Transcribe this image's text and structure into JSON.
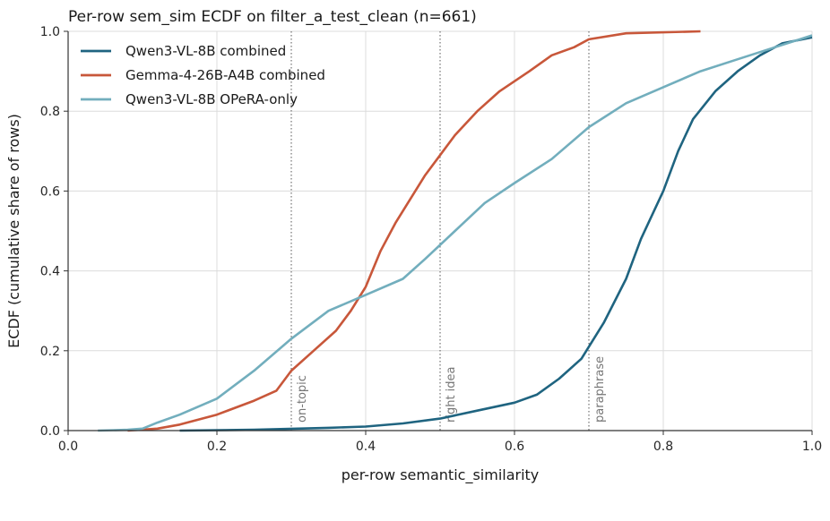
{
  "chart_data": {
    "type": "line",
    "title": "Per-row sem_sim ECDF on filter_a_test_clean (n=661)",
    "xlabel": "per-row semantic_similarity",
    "ylabel": "ECDF (cumulative share of rows)",
    "xlim": [
      0.0,
      1.0
    ],
    "ylim": [
      0.0,
      1.0
    ],
    "xticks": [
      "0.0",
      "0.2",
      "0.4",
      "0.6",
      "0.8",
      "1.0"
    ],
    "yticks": [
      "0.0",
      "0.2",
      "0.4",
      "0.6",
      "0.8",
      "1.0"
    ],
    "grid": true,
    "legend_position": "top-left",
    "thresholds": [
      {
        "x": 0.3,
        "label": "on-topic"
      },
      {
        "x": 0.5,
        "label": "right idea"
      },
      {
        "x": 0.7,
        "label": "paraphrase"
      }
    ],
    "series": [
      {
        "name": "Qwen3-VL-8B  combined",
        "color": "#1f6480",
        "points": [
          [
            0.15,
            0.0
          ],
          [
            0.25,
            0.002
          ],
          [
            0.35,
            0.007
          ],
          [
            0.4,
            0.01
          ],
          [
            0.45,
            0.018
          ],
          [
            0.5,
            0.03
          ],
          [
            0.55,
            0.05
          ],
          [
            0.6,
            0.07
          ],
          [
            0.63,
            0.09
          ],
          [
            0.66,
            0.13
          ],
          [
            0.69,
            0.18
          ],
          [
            0.7,
            0.21
          ],
          [
            0.72,
            0.27
          ],
          [
            0.75,
            0.38
          ],
          [
            0.77,
            0.48
          ],
          [
            0.8,
            0.6
          ],
          [
            0.82,
            0.7
          ],
          [
            0.84,
            0.78
          ],
          [
            0.87,
            0.85
          ],
          [
            0.9,
            0.9
          ],
          [
            0.93,
            0.94
          ],
          [
            0.96,
            0.97
          ],
          [
            1.0,
            0.985
          ]
        ]
      },
      {
        "name": "Gemma-4-26B-A4B  combined",
        "color": "#c8573a",
        "points": [
          [
            0.08,
            0.0
          ],
          [
            0.12,
            0.005
          ],
          [
            0.15,
            0.015
          ],
          [
            0.2,
            0.04
          ],
          [
            0.25,
            0.075
          ],
          [
            0.28,
            0.1
          ],
          [
            0.3,
            0.15
          ],
          [
            0.33,
            0.2
          ],
          [
            0.36,
            0.25
          ],
          [
            0.38,
            0.3
          ],
          [
            0.4,
            0.36
          ],
          [
            0.42,
            0.45
          ],
          [
            0.44,
            0.52
          ],
          [
            0.46,
            0.58
          ],
          [
            0.48,
            0.64
          ],
          [
            0.5,
            0.69
          ],
          [
            0.52,
            0.74
          ],
          [
            0.55,
            0.8
          ],
          [
            0.58,
            0.85
          ],
          [
            0.62,
            0.9
          ],
          [
            0.65,
            0.94
          ],
          [
            0.68,
            0.96
          ],
          [
            0.7,
            0.98
          ],
          [
            0.75,
            0.995
          ],
          [
            0.85,
            1.0
          ]
        ]
      },
      {
        "name": "Qwen3-VL-8B  OPeRA-only",
        "color": "#72aebd",
        "points": [
          [
            0.04,
            0.0
          ],
          [
            0.08,
            0.002
          ],
          [
            0.1,
            0.005
          ],
          [
            0.12,
            0.02
          ],
          [
            0.15,
            0.04
          ],
          [
            0.2,
            0.08
          ],
          [
            0.25,
            0.15
          ],
          [
            0.3,
            0.23
          ],
          [
            0.35,
            0.3
          ],
          [
            0.4,
            0.34
          ],
          [
            0.45,
            0.38
          ],
          [
            0.48,
            0.43
          ],
          [
            0.52,
            0.5
          ],
          [
            0.56,
            0.57
          ],
          [
            0.6,
            0.62
          ],
          [
            0.65,
            0.68
          ],
          [
            0.7,
            0.76
          ],
          [
            0.75,
            0.82
          ],
          [
            0.8,
            0.86
          ],
          [
            0.85,
            0.9
          ],
          [
            0.9,
            0.93
          ],
          [
            0.95,
            0.96
          ],
          [
            1.0,
            0.99
          ]
        ]
      }
    ]
  }
}
